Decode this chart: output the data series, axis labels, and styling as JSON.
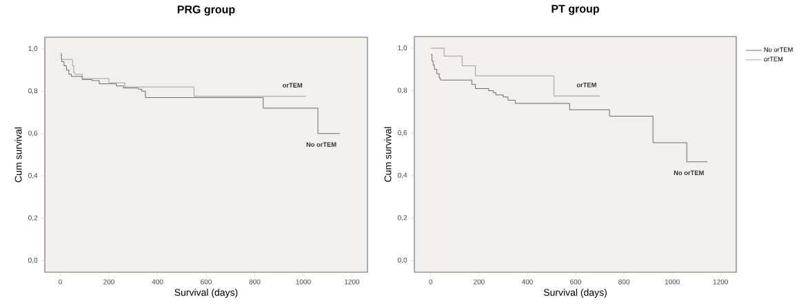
{
  "chart_data": [
    {
      "type": "step",
      "title": "PRG group",
      "xlabel": "Survival (days)",
      "ylabel": "Cum survival",
      "xlim": [
        -64,
        1264
      ],
      "ylim": [
        -0.055,
        1.055
      ],
      "xticks": [
        0,
        200,
        400,
        600,
        800,
        1000,
        1200
      ],
      "yticks": [
        {
          "value": 0.0,
          "label": "0,0"
        },
        {
          "value": 0.2,
          "label": "0,2"
        },
        {
          "value": 0.4,
          "label": "0,4"
        },
        {
          "value": 0.6,
          "label": "0,6"
        },
        {
          "value": 0.8,
          "label": "0,8"
        },
        {
          "value": 1.0,
          "label": "1,0"
        }
      ],
      "legend": false,
      "series": [
        {
          "color": "#4a4a4a",
          "x": [
            0,
            5,
            15,
            25,
            35,
            45,
            90,
            130,
            160,
            230,
            260,
            320,
            335,
            350,
            835,
            1060,
            1150
          ],
          "values": [
            0.97,
            0.94,
            0.92,
            0.9,
            0.88,
            0.87,
            0.855,
            0.85,
            0.835,
            0.825,
            0.815,
            0.81,
            0.8,
            0.77,
            0.72,
            0.6,
            0.6
          ]
        },
        {
          "color": "#8a8a8a",
          "x": [
            0,
            5,
            50,
            55,
            60,
            90,
            200,
            265,
            550,
            1010
          ],
          "values": [
            0.98,
            0.95,
            0.92,
            0.89,
            0.88,
            0.86,
            0.84,
            0.82,
            0.776,
            0.776
          ]
        }
      ],
      "annotations": [
        "orTEM",
        "No orTEM"
      ]
    },
    {
      "type": "step",
      "title": "PT group",
      "xlabel": "Survival (days)",
      "ylabel": "Cum survival",
      "xlim": [
        -68,
        1265
      ],
      "ylim": [
        -0.055,
        1.055
      ],
      "xticks": [
        0,
        200,
        400,
        600,
        800,
        1000,
        1200
      ],
      "yticks": [
        {
          "value": 0.0,
          "label": "0,0"
        },
        {
          "value": 0.2,
          "label": "0,2"
        },
        {
          "value": 0.4,
          "label": "0,4"
        },
        {
          "value": 0.6,
          "label": "0,6"
        },
        {
          "value": 0.8,
          "label": "0,8"
        },
        {
          "value": 1.0,
          "label": "1,0"
        }
      ],
      "legend": "right",
      "series": [
        {
          "name": "No orTEM",
          "color": "#4a4a4a",
          "x": [
            0,
            5,
            10,
            15,
            25,
            35,
            40,
            170,
            185,
            240,
            260,
            270,
            300,
            320,
            350,
            575,
            740,
            920,
            1060,
            1145
          ],
          "values": [
            0.97,
            0.94,
            0.92,
            0.9,
            0.88,
            0.86,
            0.85,
            0.83,
            0.81,
            0.8,
            0.79,
            0.78,
            0.77,
            0.755,
            0.74,
            0.71,
            0.68,
            0.555,
            0.465,
            0.465
          ]
        },
        {
          "name": "orTEM",
          "color": "#8a8a8a",
          "x": [
            0,
            55,
            130,
            185,
            510,
            700
          ],
          "values": [
            1.0,
            0.963,
            0.917,
            0.87,
            0.775,
            0.775
          ]
        }
      ],
      "annotations": [
        "orTEM",
        "No orTEM"
      ]
    }
  ]
}
